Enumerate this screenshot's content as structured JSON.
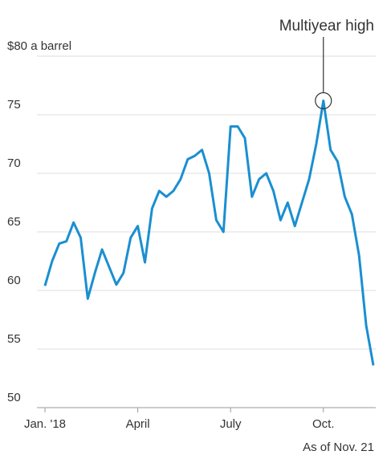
{
  "chart_data": {
    "type": "line",
    "annotation": "Multiyear high",
    "note": "As of Nov. 21",
    "categories": [
      "Jan. '18",
      null,
      null,
      null,
      null,
      null,
      null,
      null,
      null,
      null,
      null,
      null,
      null,
      "April",
      null,
      null,
      null,
      null,
      null,
      null,
      null,
      null,
      null,
      null,
      null,
      null,
      "July",
      null,
      null,
      null,
      null,
      null,
      null,
      null,
      null,
      null,
      null,
      null,
      null,
      "Oct.",
      null,
      null,
      null,
      null,
      null,
      null,
      null
    ],
    "series": [
      {
        "color": "#1a8fd0",
        "values": [
          60.4,
          62.5,
          64.0,
          64.2,
          65.8,
          64.5,
          59.3,
          61.5,
          63.5,
          62.0,
          60.5,
          61.5,
          64.5,
          65.5,
          62.4,
          67.0,
          68.5,
          68.0,
          68.5,
          69.5,
          71.2,
          71.5,
          72.0,
          70.0,
          66.0,
          65.0,
          74.0,
          74.0,
          73.0,
          68.0,
          69.5,
          70.0,
          68.5,
          66.0,
          67.5,
          65.5,
          67.5,
          69.5,
          72.5,
          76.2,
          72.0,
          71.0,
          68.0,
          66.5,
          63.0,
          57.0,
          53.6
        ]
      }
    ],
    "ylim": [
      50,
      80
    ],
    "yticks": [
      50,
      55,
      60,
      65,
      70,
      75,
      {
        "value": 80,
        "label": "$80 a barrel"
      }
    ],
    "grid": true
  }
}
